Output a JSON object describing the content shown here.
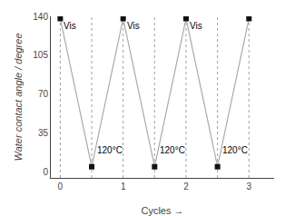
{
  "chart_data": {
    "type": "line",
    "x": [
      0,
      0.5,
      1,
      1.5,
      2,
      2.5,
      3
    ],
    "series": [
      {
        "values": [
          138,
          5,
          138,
          5,
          138,
          5,
          138
        ],
        "color": "#aaaaaa",
        "colors": [
          "#111111",
          "#111111",
          "#111111",
          "#111111",
          "#111111",
          "#111111",
          "#111111"
        ],
        "marker": "square"
      }
    ],
    "xlim": [
      -0.15,
      3.4
    ],
    "ylim": [
      -5,
      140
    ],
    "xticks": [
      0,
      1,
      2,
      3
    ],
    "yticks": [
      0,
      35,
      70,
      105,
      140
    ],
    "xlabel": "Cycles →",
    "ylabel": "Water contact angle / degree",
    "vlines": [
      0,
      0.5,
      1,
      1.5,
      2,
      2.5,
      3
    ],
    "annotations": [
      {
        "x": 0.03,
        "y": 125,
        "text": "Vis"
      },
      {
        "x": 1.03,
        "y": 125,
        "text": "Vis"
      },
      {
        "x": 2.03,
        "y": 125,
        "text": "Vis"
      },
      {
        "x": 0.55,
        "y": 14,
        "text": "120°C"
      },
      {
        "x": 1.55,
        "y": 14,
        "text": "120°C"
      },
      {
        "x": 2.55,
        "y": 14,
        "text": "120°C"
      }
    ],
    "grid": false
  }
}
